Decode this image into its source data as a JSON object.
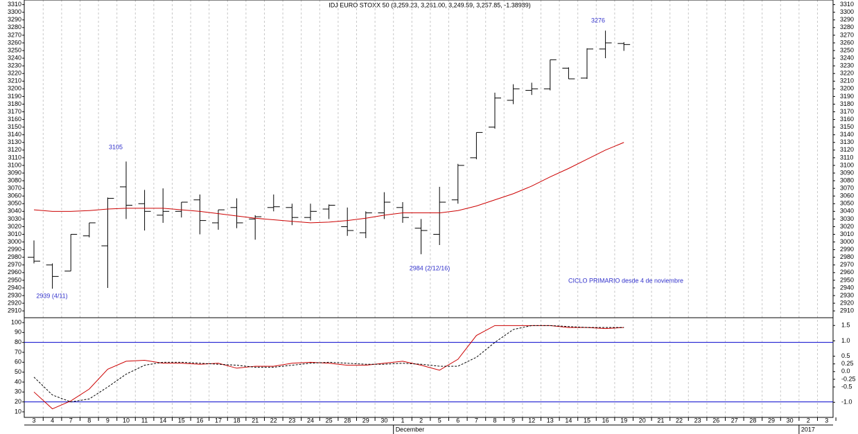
{
  "chart_data": [
    {
      "type": "ohlc",
      "title": "IDJ EURO STOXX 50 (3,259.23, 3,261.00, 3,249.59, 3,257.85, -1.38989)",
      "categories": [
        "3",
        "4",
        "7",
        "8",
        "9",
        "10",
        "11",
        "14",
        "15",
        "16",
        "17",
        "18",
        "21",
        "22",
        "23",
        "24",
        "25",
        "28",
        "29",
        "30",
        "1",
        "2",
        "5",
        "6",
        "7",
        "8",
        "9",
        "12",
        "13",
        "14",
        "15",
        "16",
        "19",
        "20",
        "21",
        "22",
        "23",
        "26",
        "27",
        "28",
        "29",
        "30",
        "2",
        "3"
      ],
      "months": [
        "December",
        "2017"
      ],
      "open": [
        2980,
        2970,
        2962,
        3008,
        2995,
        3072,
        3050,
        3035,
        3040,
        3055,
        3025,
        3045,
        3030,
        3045,
        3045,
        3032,
        3043,
        3020,
        3012,
        3038,
        3045,
        3018,
        3010,
        3055,
        3110,
        3150,
        3185,
        3198,
        3200,
        3227,
        3214,
        3252,
        3259.23,
        null,
        null,
        null,
        null,
        null,
        null,
        null,
        null,
        null,
        null,
        null
      ],
      "high": [
        3002,
        2972,
        3010,
        3025,
        3058,
        3105,
        3068,
        3070,
        3052,
        3062,
        3042,
        3057,
        3035,
        3062,
        3050,
        3050,
        3049,
        3045,
        3040,
        3065,
        3052,
        3030,
        3072,
        3102,
        3143,
        3195,
        3206,
        3208,
        3238,
        3228,
        3253,
        3276,
        3261.0,
        null,
        null,
        null,
        null,
        null,
        null,
        null,
        null,
        null,
        null,
        null
      ],
      "low": [
        2972,
        2939,
        2962,
        3006,
        2940,
        3030,
        3015,
        3025,
        3032,
        3010,
        3016,
        3018,
        3003,
        3040,
        3022,
        3028,
        3030,
        3008,
        3005,
        3030,
        3025,
        2984,
        2996,
        3050,
        3108,
        3148,
        3180,
        3192,
        3198,
        3213,
        3213,
        3240,
        3249.59,
        null,
        null,
        null,
        null,
        null,
        null,
        null,
        null,
        null,
        null,
        null
      ],
      "close": [
        2975,
        2955,
        3010,
        3025,
        3057,
        3048,
        3040,
        3040,
        3052,
        3028,
        3042,
        3025,
        3033,
        3046,
        3032,
        3040,
        3048,
        3015,
        3038,
        3052,
        3032,
        3015,
        3052,
        3100,
        3143,
        3188,
        3200,
        3200,
        3238,
        3213,
        3252,
        3260,
        3257.85,
        null,
        null,
        null,
        null,
        null,
        null,
        null,
        null,
        null,
        null,
        null
      ],
      "color": "#000000",
      "series": [
        {
          "color": "#cc0000",
          "values": [
            3042,
            3040,
            3040,
            3041,
            3043,
            3044,
            3044,
            3044,
            3042,
            3040,
            3037,
            3034,
            3031,
            3029,
            3027,
            3025,
            3026,
            3028,
            3031,
            3035,
            3038,
            3038,
            3038,
            3041,
            3047,
            3055,
            3063,
            3073,
            3085,
            3096,
            3108,
            3120,
            3130,
            null,
            null,
            null,
            null,
            null,
            null,
            null,
            null,
            null,
            null,
            null
          ]
        }
      ],
      "ylim": [
        2902,
        3316
      ],
      "yticks": [
        2910,
        2920,
        2930,
        2940,
        2950,
        2960,
        2970,
        2980,
        2990,
        3000,
        3010,
        3020,
        3030,
        3040,
        3050,
        3060,
        3070,
        3080,
        3090,
        3100,
        3110,
        3120,
        3130,
        3140,
        3150,
        3160,
        3170,
        3180,
        3190,
        3200,
        3210,
        3220,
        3230,
        3240,
        3250,
        3260,
        3270,
        3280,
        3290,
        3300,
        3310
      ],
      "annotations": [
        "3105",
        "2939 (4/11)",
        "2984 (2/12/16)",
        "3276",
        "CICLO PRIMARIO desde 4 de noviembre"
      ],
      "annotation_color": "#3333cc"
    },
    {
      "type": "line",
      "series": [
        {
          "color": "#cc0000",
          "dash": false,
          "values": [
            30,
            13,
            21,
            33,
            53,
            61,
            62,
            59,
            59,
            58,
            59,
            54,
            56,
            56,
            59,
            60,
            59,
            57,
            57,
            59,
            61,
            57,
            52,
            63,
            87,
            97,
            97,
            97,
            97,
            95,
            95,
            94,
            95,
            null,
            null,
            null,
            null,
            null,
            null,
            null,
            null,
            null,
            null,
            null
          ]
        },
        {
          "color": "#000000",
          "dash": true,
          "values": [
            45,
            27,
            20,
            23,
            35,
            48,
            57,
            60,
            60,
            59,
            58,
            57,
            55,
            55,
            57,
            59,
            60,
            59,
            58,
            58,
            59,
            58,
            56,
            56,
            65,
            80,
            93,
            97,
            97,
            96,
            95,
            95,
            95,
            null,
            null,
            null,
            null,
            null,
            null,
            null,
            null,
            null,
            null,
            null
          ]
        }
      ],
      "ylim": [
        4.4,
        104.2
      ],
      "yticks": [
        10,
        20,
        30,
        40,
        50,
        60,
        70,
        80,
        90,
        100
      ],
      "y2lim": [
        -1.49,
        1.73
      ],
      "y2ticks": [
        {
          "value": -1,
          "label": "-1.0"
        },
        -0.5,
        -0.25,
        {
          "value": 0,
          "label": "0.0"
        },
        0.25,
        0.5,
        {
          "value": 1,
          "label": "1.0"
        },
        1.5
      ],
      "hlines": [
        80,
        20
      ],
      "hline_color": "#0000cc"
    }
  ]
}
